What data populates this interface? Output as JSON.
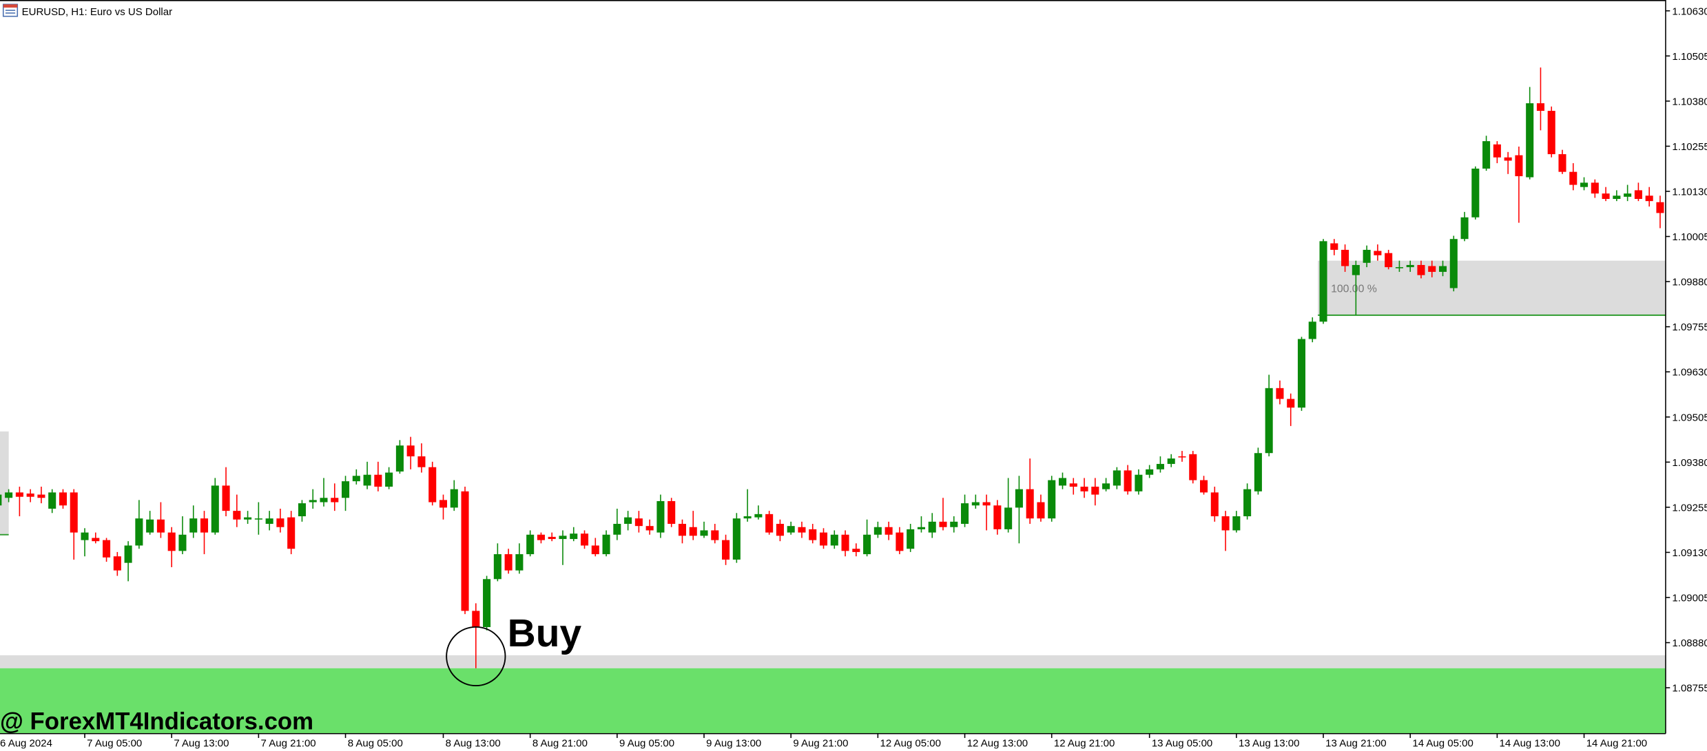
{
  "chart_data": {
    "type": "candlestick",
    "title": "EURUSD, H1:  Euro vs US Dollar",
    "watermark": "@ ForexMT4Indicators.com",
    "up_color": "#0a8a0a",
    "down_color": "#ff0000",
    "ylim": [
      1.08628,
      1.1066
    ],
    "yticks": [
      {
        "value": 1.1063,
        "label": "1.10630"
      },
      1.10505,
      {
        "value": 1.1038,
        "label": "1.10380"
      },
      1.10255,
      {
        "value": 1.1013,
        "label": "1.10130"
      },
      1.10005,
      {
        "value": 1.0988,
        "label": "1.09880"
      },
      1.09755,
      {
        "value": 1.0963,
        "label": "1.09630"
      },
      1.09505,
      {
        "value": 1.0938,
        "label": "1.09380"
      },
      1.09255,
      {
        "value": 1.0913,
        "label": "1.09130"
      },
      1.09005,
      {
        "value": 1.0888,
        "label": "1.08880"
      },
      1.08755
    ],
    "categories": [
      "6 Aug 2024",
      null,
      null,
      null,
      null,
      null,
      null,
      null,
      "7 Aug 05:00",
      null,
      null,
      null,
      null,
      null,
      null,
      null,
      "7 Aug 13:00",
      null,
      null,
      null,
      null,
      null,
      null,
      null,
      "7 Aug 21:00",
      null,
      null,
      null,
      null,
      null,
      null,
      null,
      "8 Aug 05:00",
      null,
      null,
      null,
      null,
      null,
      null,
      null,
      null,
      "8 Aug 13:00",
      null,
      null,
      null,
      null,
      null,
      null,
      null,
      "8 Aug 21:00",
      null,
      null,
      null,
      null,
      null,
      null,
      null,
      "9 Aug 05:00",
      null,
      null,
      null,
      null,
      null,
      null,
      null,
      "9 Aug 13:00",
      null,
      null,
      null,
      null,
      null,
      null,
      null,
      "9 Aug 21:00",
      null,
      null,
      null,
      null,
      null,
      null,
      null,
      "12 Aug 05:00",
      null,
      null,
      null,
      null,
      null,
      null,
      null,
      "12 Aug 13:00",
      null,
      null,
      null,
      null,
      null,
      null,
      null,
      "12 Aug 21:00",
      null,
      null,
      null,
      null,
      null,
      null,
      null,
      null,
      "13 Aug 05:00",
      null,
      null,
      null,
      null,
      null,
      null,
      null,
      "13 Aug 13:00",
      null,
      null,
      null,
      null,
      null,
      null,
      null,
      "13 Aug 21:00",
      null,
      null,
      null,
      null,
      null,
      null,
      null,
      "14 Aug 05:00",
      null,
      null,
      null,
      null,
      null,
      null,
      null,
      "14 Aug 13:00",
      null,
      null,
      null,
      null,
      null,
      null,
      null,
      "14 Aug 21:00",
      null,
      null,
      null,
      null,
      null,
      null,
      null
    ],
    "ohlc": [
      [
        1.0926,
        1.0929,
        1.09251,
        1.0929
      ],
      [
        1.09281,
        1.09305,
        1.09269,
        1.09296
      ],
      [
        1.09296,
        1.09312,
        1.0923,
        1.09284
      ],
      [
        1.09293,
        1.09305,
        1.09269,
        1.09284
      ],
      [
        1.0929,
        1.09312,
        1.09266,
        1.09281
      ],
      [
        1.09251,
        1.09305,
        1.09239,
        1.09296
      ],
      [
        1.09296,
        1.09305,
        1.09251,
        1.0926
      ],
      [
        1.09296,
        1.09305,
        1.0911,
        1.09185
      ],
      [
        1.09164,
        1.09197,
        1.09119,
        1.09185
      ],
      [
        1.0917,
        1.09185,
        1.09155,
        1.09161
      ],
      [
        1.09164,
        1.0917,
        1.09104,
        1.09116
      ],
      [
        1.09119,
        1.09131,
        1.09065,
        1.0908
      ],
      [
        1.09101,
        1.09161,
        1.0905,
        1.09149
      ],
      [
        1.09149,
        1.09275,
        1.0914,
        1.09224
      ],
      [
        1.09185,
        1.09245,
        1.09179,
        1.09221
      ],
      [
        1.09221,
        1.09269,
        1.0917,
        1.09185
      ],
      [
        1.09185,
        1.092,
        1.09089,
        1.09134
      ],
      [
        1.09134,
        1.0923,
        1.09125,
        1.09179
      ],
      [
        1.09185,
        1.0926,
        1.0917,
        1.09224
      ],
      [
        1.09224,
        1.09245,
        1.09125,
        1.09185
      ],
      [
        1.09185,
        1.09336,
        1.09179,
        1.09315
      ],
      [
        1.09315,
        1.09366,
        1.0923,
        1.09245
      ],
      [
        1.09245,
        1.0929,
        1.092,
        1.09221
      ],
      [
        1.09221,
        1.09245,
        1.09209,
        1.09227
      ],
      [
        1.09221,
        1.09269,
        1.09179,
        1.09224
      ],
      [
        1.09209,
        1.09245,
        1.09191,
        1.09224
      ],
      [
        1.09224,
        1.09251,
        1.09185,
        1.092
      ],
      [
        1.09227,
        1.09245,
        1.09125,
        1.0914
      ],
      [
        1.0923,
        1.09275,
        1.09215,
        1.09266
      ],
      [
        1.09269,
        1.09305,
        1.09251,
        1.09275
      ],
      [
        1.09269,
        1.09336,
        1.09257,
        1.09281
      ],
      [
        1.09281,
        1.09321,
        1.09245,
        1.09269
      ],
      [
        1.09281,
        1.09342,
        1.09245,
        1.09327
      ],
      [
        1.09327,
        1.0936,
        1.09318,
        1.09342
      ],
      [
        1.09315,
        1.09381,
        1.09305,
        1.09345
      ],
      [
        1.09345,
        1.09381,
        1.09299,
        1.09312
      ],
      [
        1.09312,
        1.09366,
        1.09305,
        1.09351
      ],
      [
        1.09354,
        1.09441,
        1.09348,
        1.09426
      ],
      [
        1.09426,
        1.0945,
        1.0936,
        1.09396
      ],
      [
        1.09396,
        1.09432,
        1.09351,
        1.09366
      ],
      [
        1.09366,
        1.09381,
        1.0926,
        1.09269
      ],
      [
        1.09275,
        1.0929,
        1.09221,
        1.09254
      ],
      [
        1.09254,
        1.0933,
        1.09245,
        1.09305
      ],
      [
        1.09299,
        1.09312,
        1.08959,
        1.08968
      ],
      [
        1.08968,
        1.08989,
        1.08809,
        1.08923
      ],
      [
        1.08923,
        1.09065,
        1.08914,
        1.09056
      ],
      [
        1.09056,
        1.09155,
        1.0905,
        1.09125
      ],
      [
        1.09125,
        1.0914,
        1.09071,
        1.0908
      ],
      [
        1.0908,
        1.09155,
        1.09071,
        1.09125
      ],
      [
        1.09125,
        1.09191,
        1.09119,
        1.09179
      ],
      [
        1.09179,
        1.09185,
        1.09155,
        1.09164
      ],
      [
        1.09173,
        1.09185,
        1.09161,
        1.09167
      ],
      [
        1.09167,
        1.09191,
        1.09095,
        1.09176
      ],
      [
        1.09167,
        1.092,
        1.09161,
        1.09182
      ],
      [
        1.09182,
        1.09191,
        1.0914,
        1.09149
      ],
      [
        1.09149,
        1.0917,
        1.09119,
        1.09125
      ],
      [
        1.09125,
        1.09191,
        1.09119,
        1.09179
      ],
      [
        1.09179,
        1.09251,
        1.09164,
        1.09209
      ],
      [
        1.09209,
        1.09245,
        1.09191,
        1.09227
      ],
      [
        1.09224,
        1.09245,
        1.09185,
        1.09203
      ],
      [
        1.09203,
        1.09221,
        1.09179,
        1.09191
      ],
      [
        1.09185,
        1.0929,
        1.0917,
        1.09272
      ],
      [
        1.09272,
        1.09281,
        1.092,
        1.09209
      ],
      [
        1.09209,
        1.09221,
        1.09155,
        1.09176
      ],
      [
        1.092,
        1.09245,
        1.09164,
        1.09176
      ],
      [
        1.09176,
        1.09215,
        1.0917,
        1.09191
      ],
      [
        1.09191,
        1.09209,
        1.09155,
        1.09164
      ],
      [
        1.09164,
        1.09179,
        1.09095,
        1.0911
      ],
      [
        1.0911,
        1.09239,
        1.09101,
        1.09224
      ],
      [
        1.09224,
        1.09305,
        1.09215,
        1.0923
      ],
      [
        1.09227,
        1.0926,
        1.09221,
        1.09236
      ],
      [
        1.09236,
        1.09245,
        1.09179,
        1.09185
      ],
      [
        1.09209,
        1.09221,
        1.09161,
        1.09176
      ],
      [
        1.09185,
        1.09215,
        1.09179,
        1.09203
      ],
      [
        1.092,
        1.09215,
        1.0917,
        1.09185
      ],
      [
        1.09194,
        1.09209,
        1.09155,
        1.09164
      ],
      [
        1.09185,
        1.09197,
        1.0914,
        1.09149
      ],
      [
        1.09149,
        1.09191,
        1.0914,
        1.09179
      ],
      [
        1.09179,
        1.09191,
        1.09119,
        1.09134
      ],
      [
        1.0914,
        1.09155,
        1.09119,
        1.09131
      ],
      [
        1.09125,
        1.09221,
        1.09119,
        1.09179
      ],
      [
        1.09179,
        1.09215,
        1.0917,
        1.092
      ],
      [
        1.092,
        1.09215,
        1.09164,
        1.09179
      ],
      [
        1.09185,
        1.092,
        1.09125,
        1.09134
      ],
      [
        1.0914,
        1.09209,
        1.09131,
        1.09194
      ],
      [
        1.09194,
        1.0923,
        1.09185,
        1.092
      ],
      [
        1.09185,
        1.09239,
        1.0917,
        1.09215
      ],
      [
        1.09215,
        1.09281,
        1.09191,
        1.092
      ],
      [
        1.092,
        1.0923,
        1.09185,
        1.09215
      ],
      [
        1.09209,
        1.0929,
        1.092,
        1.09266
      ],
      [
        1.0926,
        1.0929,
        1.09251,
        1.09269
      ],
      [
        1.09269,
        1.0929,
        1.09191,
        1.0926
      ],
      [
        1.0926,
        1.09275,
        1.09179,
        1.09194
      ],
      [
        1.09194,
        1.09336,
        1.09185,
        1.09254
      ],
      [
        1.09254,
        1.09342,
        1.09155,
        1.09305
      ],
      [
        1.09305,
        1.0939,
        1.09209,
        1.09224
      ],
      [
        1.09269,
        1.0929,
        1.09215,
        1.09224
      ],
      [
        1.09224,
        1.09342,
        1.09215,
        1.0933
      ],
      [
        1.09315,
        1.09351,
        1.09305,
        1.09336
      ],
      [
        1.09321,
        1.09336,
        1.0929,
        1.09312
      ],
      [
        1.09312,
        1.09336,
        1.09281,
        1.09299
      ],
      [
        1.09312,
        1.09336,
        1.0926,
        1.0929
      ],
      [
        1.09305,
        1.09336,
        1.09299,
        1.09321
      ],
      [
        1.09315,
        1.09366,
        1.09305,
        1.09357
      ],
      [
        1.09357,
        1.09372,
        1.0929,
        1.09299
      ],
      [
        1.09299,
        1.0936,
        1.0929,
        1.09345
      ],
      [
        1.09345,
        1.09372,
        1.09336,
        1.0936
      ],
      [
        1.0936,
        1.09396,
        1.09351,
        1.09375
      ],
      [
        1.09375,
        1.09402,
        1.09366,
        1.0939
      ],
      [
        1.09396,
        1.09411,
        1.09381,
        1.09396
      ],
      [
        1.09402,
        1.09411,
        1.09321,
        1.0933
      ],
      [
        1.0933,
        1.09342,
        1.0929,
        1.09296
      ],
      [
        1.09296,
        1.09312,
        1.09215,
        1.0923
      ],
      [
        1.0923,
        1.09245,
        1.09134,
        1.09191
      ],
      [
        1.09191,
        1.09245,
        1.09185,
        1.0923
      ],
      [
        1.0923,
        1.09321,
        1.09221,
        1.09305
      ],
      [
        1.09299,
        1.0942,
        1.0929,
        1.09405
      ],
      [
        1.09405,
        1.09622,
        1.09396,
        1.09585
      ],
      [
        1.09585,
        1.09606,
        1.0954,
        1.09555
      ],
      [
        1.09555,
        1.0957,
        1.0948,
        1.09531
      ],
      [
        1.09531,
        1.09727,
        1.09522,
        1.09721
      ],
      [
        1.09721,
        1.09781,
        1.09712,
        1.09769
      ],
      [
        1.09769,
        1.09998,
        1.09763,
        1.09992
      ],
      [
        1.09986,
        1.09998,
        1.09953,
        1.09968
      ],
      [
        1.09968,
        1.09983,
        1.09907,
        1.09923
      ],
      [
        1.09898,
        1.09938,
        1.09787,
        1.09926
      ],
      [
        1.09932,
        1.0998,
        1.0992,
        1.09968
      ],
      [
        1.09965,
        1.09983,
        1.09938,
        1.09953
      ],
      [
        1.09959,
        1.09968,
        1.09914,
        1.0992
      ],
      [
        1.09917,
        1.09938,
        1.09907,
        1.0992
      ],
      [
        1.0992,
        1.09938,
        1.09907,
        1.09926
      ],
      [
        1.09926,
        1.09938,
        1.09889,
        1.09898
      ],
      [
        1.09923,
        1.09938,
        1.09892,
        1.09907
      ],
      [
        1.09907,
        1.09938,
        1.09895,
        1.09923
      ],
      [
        1.09862,
        1.10007,
        1.09853,
        1.09998
      ],
      [
        1.09998,
        1.10073,
        1.09992,
        1.10058
      ],
      [
        1.10058,
        1.10199,
        1.10052,
        1.10193
      ],
      [
        1.10193,
        1.10284,
        1.10187,
        1.10269
      ],
      [
        1.1026,
        1.10269,
        1.10208,
        1.10224
      ],
      [
        1.10224,
        1.10239,
        1.10178,
        1.10215
      ],
      [
        1.1023,
        1.10254,
        1.10043,
        1.10172
      ],
      [
        1.10169,
        1.10419,
        1.10163,
        1.10374
      ],
      [
        1.10374,
        1.10473,
        1.10299,
        1.10353
      ],
      [
        1.10353,
        1.10365,
        1.10224,
        1.10233
      ],
      [
        1.10233,
        1.10245,
        1.10178,
        1.10184
      ],
      [
        1.10184,
        1.10208,
        1.10133,
        1.10148
      ],
      [
        1.10142,
        1.10169,
        1.10133,
        1.10154
      ],
      [
        1.10154,
        1.10163,
        1.10112,
        1.10124
      ],
      [
        1.10124,
        1.10142,
        1.10103,
        1.10109
      ],
      [
        1.10109,
        1.10133,
        1.10103,
        1.10118
      ],
      [
        1.10115,
        1.10148,
        1.10103,
        1.10124
      ],
      [
        1.10133,
        1.10154,
        1.10103,
        1.10109
      ],
      [
        1.10118,
        1.10142,
        1.10088,
        1.10103
      ],
      [
        1.101,
        1.10118,
        1.10028,
        1.1007
      ]
    ],
    "zones": [
      {
        "y": [
          1.08845,
          1.08809
        ],
        "color": "#dcdcdc"
      },
      {
        "y": [
          1.08809,
          1.08628
        ],
        "color": "#6ae06a"
      },
      {
        "y": [
          1.09938,
          1.09787
        ],
        "color": "#dcdcdc",
        "from": 122,
        "line": "#2e9b2e",
        "label": "100.00 %"
      },
      {
        "y": [
          1.09465,
          1.09179
        ],
        "color": "#dcdcdc",
        "to": 0,
        "line": "#2e9b2e"
      }
    ],
    "annotations": [
      {
        "text": "Buy",
        "index": 44
      }
    ]
  }
}
